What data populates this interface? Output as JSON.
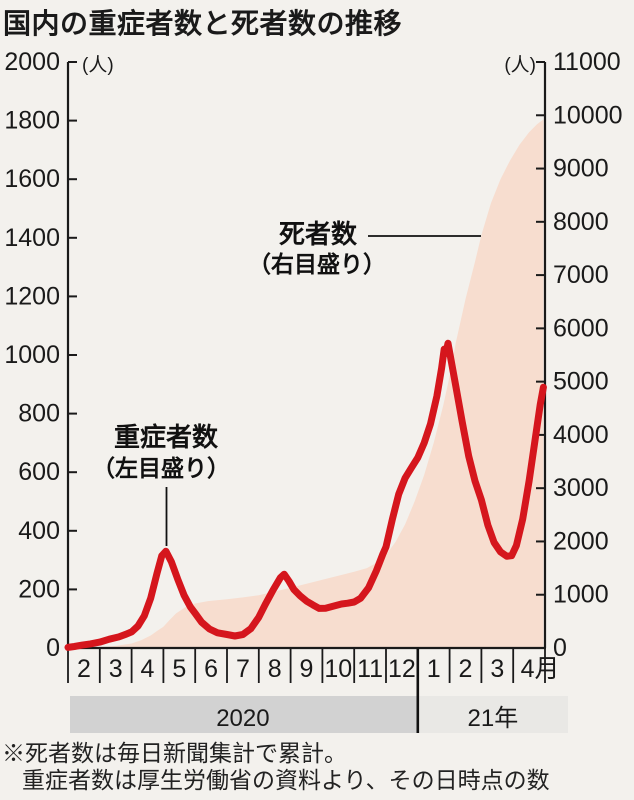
{
  "page": {
    "title": "国内の重症者数と死者数の推移",
    "background": "#f3f1ed"
  },
  "annotations": {
    "deaths": {
      "name": "死者数",
      "scale_note": "（右目盛り）"
    },
    "severe": {
      "name": "重症者数",
      "scale_note": "（左目盛り）"
    }
  },
  "footer": {
    "line1": "※死者数は毎日新聞集計で累計。",
    "line2": "重症者数は厚生労働省の資料より、その日時点の数"
  },
  "chart_data": {
    "type": "line",
    "title": "国内の重症者数と死者数の推移",
    "grid": false,
    "left_axis": {
      "unit": "(人)",
      "min": 0,
      "max": 2000,
      "step": 200,
      "ticks": [
        0,
        200,
        400,
        600,
        800,
        1000,
        1200,
        1400,
        1600,
        1800,
        2000
      ]
    },
    "right_axis": {
      "unit": "(人)",
      "min": 0,
      "max": 11000,
      "step": 1000,
      "ticks": [
        0,
        1000,
        2000,
        3000,
        4000,
        5000,
        6000,
        7000,
        8000,
        9000,
        10000,
        11000
      ]
    },
    "x_axis": {
      "months": [
        "2",
        "3",
        "4",
        "5",
        "6",
        "7",
        "8",
        "9",
        "10",
        "11",
        "12",
        "1",
        "2",
        "3",
        "4月"
      ],
      "year_bands": [
        {
          "label": "2020",
          "from": 0,
          "to": 11,
          "color": "#d2d2d2"
        },
        {
          "label": "21年",
          "from": 11,
          "to": 15,
          "color": "#e9e8e5"
        }
      ]
    },
    "series": [
      {
        "name": "死者数（右目盛り）",
        "axis": "right",
        "style": "area",
        "color": "#f7ddcf",
        "points": [
          [
            0,
            0
          ],
          [
            0.5,
            3
          ],
          [
            1,
            15
          ],
          [
            1.5,
            40
          ],
          [
            2,
            85
          ],
          [
            2.3,
            145
          ],
          [
            2.6,
            235
          ],
          [
            2.8,
            320
          ],
          [
            3,
            400
          ],
          [
            3.2,
            530
          ],
          [
            3.4,
            650
          ],
          [
            3.7,
            770
          ],
          [
            4,
            835
          ],
          [
            4.4,
            880
          ],
          [
            5,
            915
          ],
          [
            5.5,
            950
          ],
          [
            6,
            990
          ],
          [
            6.5,
            1060
          ],
          [
            7,
            1130
          ],
          [
            7.5,
            1205
          ],
          [
            8,
            1280
          ],
          [
            8.5,
            1355
          ],
          [
            9,
            1430
          ],
          [
            9.4,
            1500
          ],
          [
            9.7,
            1600
          ],
          [
            10,
            1750
          ],
          [
            10.3,
            1990
          ],
          [
            10.6,
            2320
          ],
          [
            10.9,
            2750
          ],
          [
            11.2,
            3250
          ],
          [
            11.5,
            3850
          ],
          [
            11.8,
            4550
          ],
          [
            12,
            5100
          ],
          [
            12.2,
            5750
          ],
          [
            12.5,
            6550
          ],
          [
            12.8,
            7250
          ],
          [
            13,
            7750
          ],
          [
            13.3,
            8350
          ],
          [
            13.6,
            8800
          ],
          [
            13.9,
            9150
          ],
          [
            14.2,
            9450
          ],
          [
            14.5,
            9680
          ],
          [
            14.75,
            9830
          ],
          [
            14.95,
            9920
          ]
        ]
      },
      {
        "name": "重症者数（左目盛り）",
        "axis": "left",
        "style": "line",
        "color": "#d5161d",
        "points": [
          [
            0,
            2
          ],
          [
            0.2,
            5
          ],
          [
            0.45,
            10
          ],
          [
            0.7,
            14
          ],
          [
            1,
            20
          ],
          [
            1.3,
            30
          ],
          [
            1.6,
            38
          ],
          [
            1.85,
            48
          ],
          [
            2,
            55
          ],
          [
            2.2,
            75
          ],
          [
            2.4,
            110
          ],
          [
            2.6,
            170
          ],
          [
            2.8,
            255
          ],
          [
            2.95,
            315
          ],
          [
            3.08,
            330
          ],
          [
            3.25,
            295
          ],
          [
            3.45,
            235
          ],
          [
            3.65,
            180
          ],
          [
            3.85,
            140
          ],
          [
            4,
            118
          ],
          [
            4.2,
            88
          ],
          [
            4.45,
            65
          ],
          [
            4.7,
            52
          ],
          [
            5,
            46
          ],
          [
            5.25,
            41
          ],
          [
            5.5,
            46
          ],
          [
            5.75,
            66
          ],
          [
            6,
            105
          ],
          [
            6.2,
            148
          ],
          [
            6.45,
            198
          ],
          [
            6.68,
            240
          ],
          [
            6.8,
            252
          ],
          [
            6.95,
            228
          ],
          [
            7.1,
            200
          ],
          [
            7.3,
            178
          ],
          [
            7.5,
            160
          ],
          [
            7.7,
            147
          ],
          [
            7.9,
            135
          ],
          [
            8.1,
            136
          ],
          [
            8.35,
            143
          ],
          [
            8.6,
            150
          ],
          [
            8.8,
            153
          ],
          [
            9,
            157
          ],
          [
            9.2,
            170
          ],
          [
            9.45,
            205
          ],
          [
            9.7,
            265
          ],
          [
            9.9,
            320
          ],
          [
            10,
            345
          ],
          [
            10.2,
            440
          ],
          [
            10.4,
            525
          ],
          [
            10.6,
            580
          ],
          [
            10.8,
            615
          ],
          [
            11,
            650
          ],
          [
            11.2,
            700
          ],
          [
            11.4,
            765
          ],
          [
            11.6,
            860
          ],
          [
            11.75,
            955
          ],
          [
            11.83,
            1020
          ],
          [
            11.88,
            1005
          ],
          [
            11.95,
            1040
          ],
          [
            12.05,
            980
          ],
          [
            12.2,
            890
          ],
          [
            12.4,
            770
          ],
          [
            12.6,
            655
          ],
          [
            12.8,
            570
          ],
          [
            13,
            505
          ],
          [
            13.2,
            420
          ],
          [
            13.4,
            360
          ],
          [
            13.6,
            328
          ],
          [
            13.8,
            313
          ],
          [
            13.95,
            315
          ],
          [
            14.1,
            350
          ],
          [
            14.3,
            440
          ],
          [
            14.5,
            570
          ],
          [
            14.7,
            720
          ],
          [
            14.85,
            830
          ],
          [
            14.95,
            890
          ]
        ]
      }
    ],
    "colors": {
      "line_red": "#d5161d",
      "area_pink": "#f7ddcf",
      "axis": "#1a1a1a",
      "band_2020": "#d2d2d2",
      "band_2021": "#e9e8e5"
    }
  }
}
